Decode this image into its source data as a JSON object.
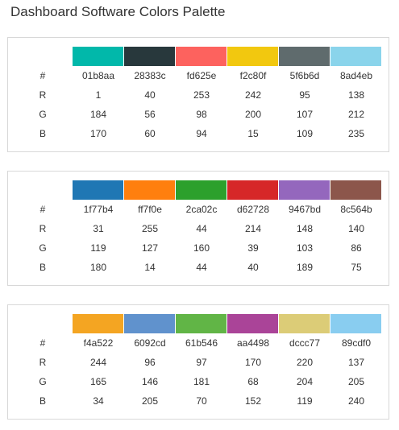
{
  "title": "Dashboard Software Colors Palette",
  "row_labels": [
    "#",
    "R",
    "G",
    "B"
  ],
  "palettes": [
    {
      "colors": [
        {
          "hex": "01b8aa",
          "r": "1",
          "g": "184",
          "b": "170"
        },
        {
          "hex": "28383c",
          "r": "40",
          "g": "56",
          "b": "60"
        },
        {
          "hex": "fd625e",
          "r": "253",
          "g": "98",
          "b": "94"
        },
        {
          "hex": "f2c80f",
          "r": "242",
          "g": "200",
          "b": "15"
        },
        {
          "hex": "5f6b6d",
          "r": "95",
          "g": "107",
          "b": "109"
        },
        {
          "hex": "8ad4eb",
          "r": "138",
          "g": "212",
          "b": "235"
        }
      ]
    },
    {
      "colors": [
        {
          "hex": "1f77b4",
          "r": "31",
          "g": "119",
          "b": "180"
        },
        {
          "hex": "ff7f0e",
          "r": "255",
          "g": "127",
          "b": "14"
        },
        {
          "hex": "2ca02c",
          "r": "44",
          "g": "160",
          "b": "44"
        },
        {
          "hex": "d62728",
          "r": "214",
          "g": "39",
          "b": "40"
        },
        {
          "hex": "9467bd",
          "r": "148",
          "g": "103",
          "b": "189"
        },
        {
          "hex": "8c564b",
          "r": "140",
          "g": "86",
          "b": "75"
        }
      ]
    },
    {
      "colors": [
        {
          "hex": "f4a522",
          "r": "244",
          "g": "165",
          "b": "34"
        },
        {
          "hex": "6092cd",
          "r": "96",
          "g": "146",
          "b": "205"
        },
        {
          "hex": "61b546",
          "r": "97",
          "g": "181",
          "b": "70"
        },
        {
          "hex": "aa4498",
          "r": "170",
          "g": "68",
          "b": "152"
        },
        {
          "hex": "dccc77",
          "r": "220",
          "g": "204",
          "b": "119"
        },
        {
          "hex": "89cdf0",
          "r": "137",
          "g": "205",
          "b": "240"
        }
      ]
    }
  ]
}
